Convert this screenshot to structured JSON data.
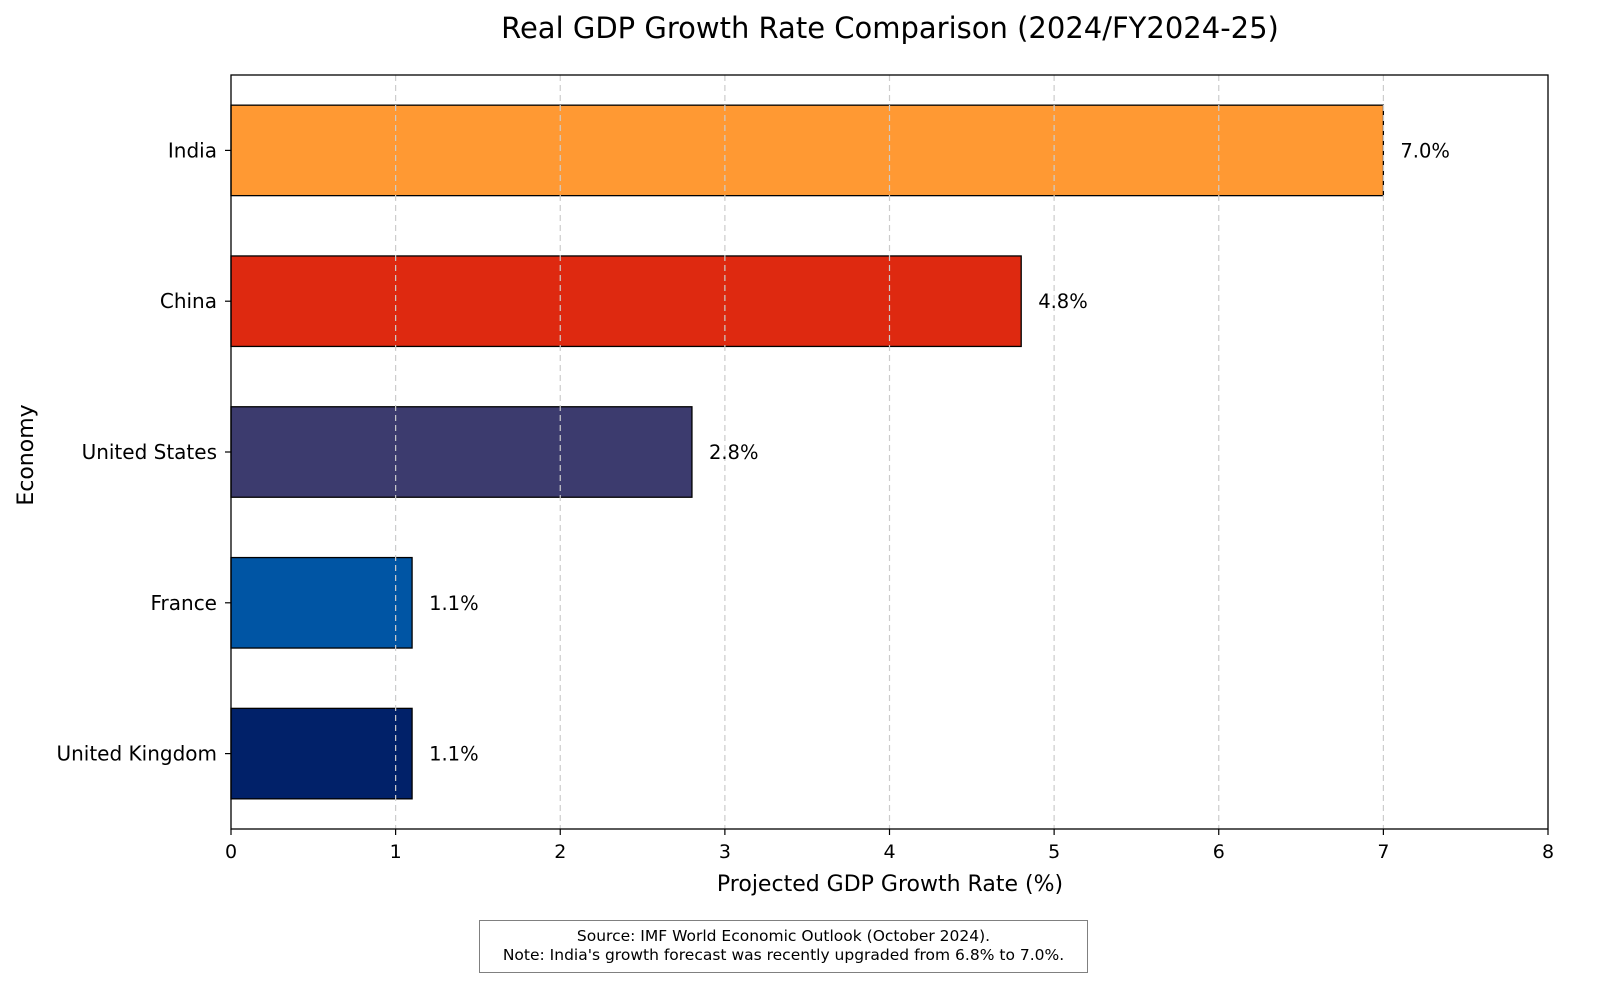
{
  "chart_data": {
    "type": "bar",
    "orientation": "horizontal",
    "title": "Real GDP Growth Rate Comparison (2024/FY2024-25)",
    "xlabel": "Projected GDP Growth Rate (%)",
    "ylabel": "Economy",
    "xlim": [
      0,
      8
    ],
    "xticks": [
      0,
      1,
      2,
      3,
      4,
      5,
      6,
      7,
      8
    ],
    "grid": "x-dashed",
    "categories": [
      "India",
      "China",
      "United States",
      "France",
      "United Kingdom"
    ],
    "values": [
      7.0,
      4.8,
      2.8,
      1.1,
      1.1
    ],
    "data_labels": [
      "7.0%",
      "4.8%",
      "2.8%",
      "1.1%",
      "1.1%"
    ],
    "colors": [
      "#FF9933",
      "#DE2910",
      "#3C3B6E",
      "#0055A4",
      "#012169"
    ],
    "annotation": [
      "Source: IMF World Economic Outlook (October 2024).",
      "Note: India's growth forecast was recently upgraded from 6.8% to 7.0%."
    ]
  }
}
